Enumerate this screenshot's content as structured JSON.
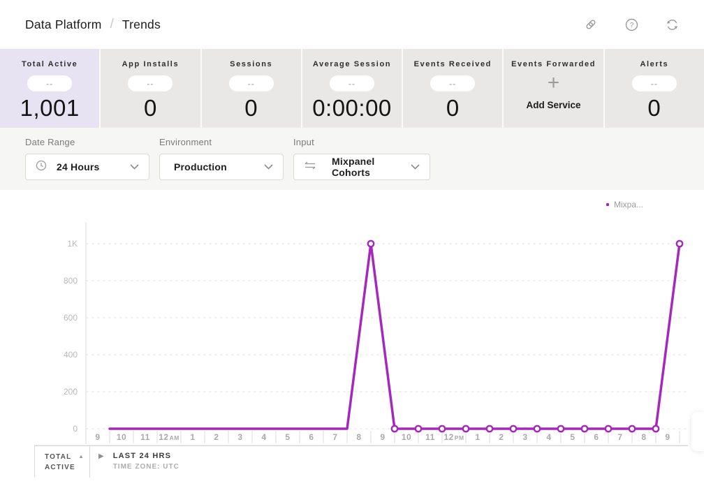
{
  "header": {
    "breadcrumb": {
      "section": "Data Platform",
      "page": "Trends"
    }
  },
  "metrics": {
    "cards": [
      {
        "label": "Total Active",
        "pill": "--",
        "value": "1,001",
        "selected": true
      },
      {
        "label": "App Installs",
        "pill": "--",
        "value": "0"
      },
      {
        "label": "Sessions",
        "pill": "--",
        "value": "0"
      },
      {
        "label": "Average Session",
        "pill": "--",
        "value": "0:00:00"
      },
      {
        "label": "Events Received",
        "pill": "--",
        "value": "0"
      },
      {
        "label": "Events Forwarded",
        "action": "Add Service",
        "icon": "plus-icon"
      },
      {
        "label": "Alerts",
        "pill": "--",
        "value": "0"
      }
    ]
  },
  "filters": {
    "date_range": {
      "label": "Date Range",
      "value": "24 Hours",
      "icon": "clock-icon"
    },
    "environment": {
      "label": "Environment",
      "value": "Production"
    },
    "input": {
      "label": "Input",
      "value": "Mixpanel Cohorts",
      "icon": "swap-icon"
    }
  },
  "chart_data": {
    "type": "line",
    "title": "",
    "legend": {
      "label": "Mixpa...",
      "position": "top-right"
    },
    "x_labels": [
      "9",
      "10",
      "11",
      "12 AM",
      "1",
      "2",
      "3",
      "4",
      "5",
      "6",
      "7",
      "8",
      "9",
      "10",
      "11",
      "12 PM",
      "1",
      "2",
      "3",
      "4",
      "5",
      "6",
      "7",
      "8",
      "9"
    ],
    "series": [
      {
        "name": "Mixpa...",
        "color": "#A428BB",
        "values": [
          0,
          0,
          0,
          0,
          0,
          0,
          0,
          0,
          0,
          0,
          0,
          1000,
          0,
          0,
          0,
          0,
          0,
          0,
          0,
          0,
          0,
          0,
          0,
          0,
          1000
        ],
        "marker_start_index": 11
      }
    ],
    "ylim": [
      0,
      1000
    ],
    "yticks": [
      {
        "value": 0,
        "label": "0"
      },
      {
        "value": 200,
        "label": "200"
      },
      {
        "value": 400,
        "label": "400"
      },
      {
        "value": 600,
        "label": "600"
      },
      {
        "value": 800,
        "label": "800"
      },
      {
        "value": 1000,
        "label": "1K"
      }
    ],
    "grid": "dashed-horizontal"
  },
  "chart_footer": {
    "metric_line1": "TOTAL",
    "metric_line2": "ACTIVE",
    "range_label": "LAST 24 HRS",
    "timezone_label": "TIME ZONE: UTC"
  },
  "colors": {
    "series_purple": "#A428BB",
    "selected_card_bg": "#E7E3F3",
    "card_bg": "#E9E8E6",
    "filter_bar_bg": "#F6F6F4"
  }
}
